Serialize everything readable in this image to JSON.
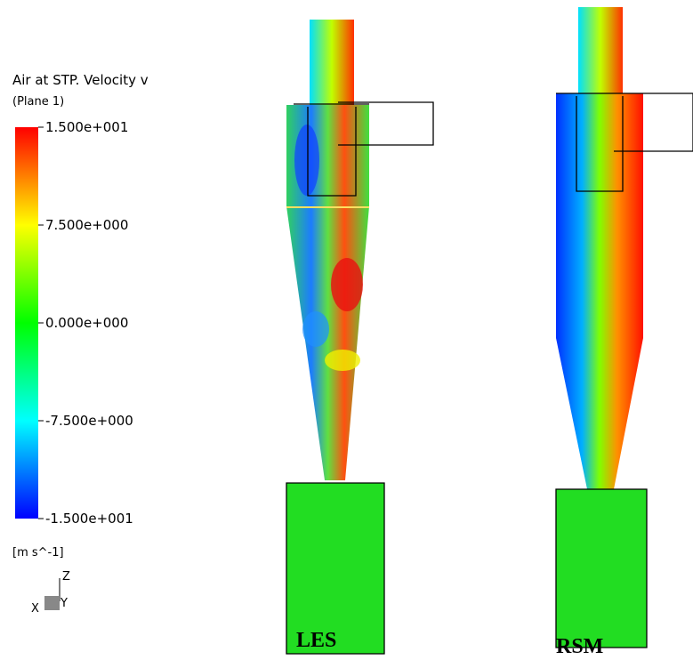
{
  "legend": {
    "title": "Air at STP. Velocity v",
    "subtitle": "(Plane 1)",
    "labels": [
      "1.500e+001",
      "7.500e+000",
      "0.000e+000",
      "-7.500e+000",
      "-1.500e+001"
    ],
    "unit": "[m s^-1]"
  },
  "axes": {
    "z": "Z",
    "x": "X",
    "y": "Y"
  },
  "panels": [
    "LES",
    "RSM"
  ]
}
